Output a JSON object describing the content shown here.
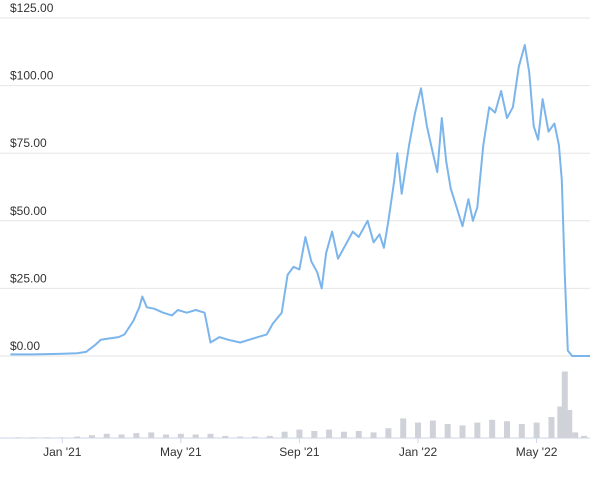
{
  "chart_data": {
    "type": "line",
    "x": [
      -1.75,
      -1.0,
      -0.5,
      0,
      0.5,
      0.8,
      1.1,
      1.3,
      1.6,
      1.9,
      2.1,
      2.4,
      2.6,
      2.7,
      2.85,
      3.1,
      3.4,
      3.7,
      3.9,
      4.2,
      4.5,
      4.8,
      5.0,
      5.3,
      5.6,
      6.0,
      6.3,
      6.6,
      6.9,
      7.1,
      7.4,
      7.6,
      7.8,
      8.0,
      8.2,
      8.4,
      8.6,
      8.75,
      8.9,
      9.1,
      9.3,
      9.6,
      9.8,
      10.0,
      10.3,
      10.5,
      10.7,
      10.85,
      11.0,
      11.2,
      11.3,
      11.45,
      11.7,
      11.9,
      12.1,
      12.3,
      12.5,
      12.65,
      12.8,
      12.95,
      13.1,
      13.3,
      13.5,
      13.7,
      13.85,
      14.0,
      14.2,
      14.4,
      14.6,
      14.8,
      15.0,
      15.2,
      15.4,
      15.6,
      15.75,
      15.9,
      16.05,
      16.2,
      16.4,
      16.6,
      16.75,
      16.85,
      16.95,
      17.05,
      17.2,
      17.8
    ],
    "values": [
      0.6,
      0.6,
      0.7,
      0.8,
      1.0,
      1.5,
      4,
      6,
      6.5,
      7,
      8,
      13,
      18,
      22,
      18,
      17.5,
      16,
      15,
      17,
      16,
      17,
      16,
      5,
      7,
      6,
      5,
      6,
      7,
      8,
      12,
      16,
      30,
      33,
      32,
      44,
      35,
      31,
      25,
      38,
      46,
      36,
      42,
      46,
      44,
      50,
      42,
      45,
      40,
      50,
      65,
      75,
      60,
      78,
      90,
      99,
      85,
      75,
      68,
      88,
      72,
      62,
      55,
      48,
      58,
      50,
      55,
      78,
      92,
      90,
      98,
      88,
      92,
      107,
      115,
      105,
      85,
      80,
      95,
      83,
      86,
      78,
      65,
      30,
      2,
      0.01,
      0.01
    ],
    "color": "#7cb5ec",
    "xlim": [
      -2.1,
      17.8
    ],
    "xticks": [
      {
        "value": 0,
        "label": "Jan '21"
      },
      {
        "value": 4,
        "label": "May '21"
      },
      {
        "value": 8,
        "label": "Sep '21"
      },
      {
        "value": 12,
        "label": "Jan '22"
      },
      {
        "value": 16,
        "label": "May '22"
      }
    ],
    "ylim": [
      0,
      125
    ],
    "yticks": [
      {
        "value": 0,
        "label": "$0.00"
      },
      {
        "value": 25,
        "label": "$25.00"
      },
      {
        "value": 50,
        "label": "$50.00"
      },
      {
        "value": 75,
        "label": "$75.00"
      },
      {
        "value": 100,
        "label": "$100.00"
      },
      {
        "value": 125,
        "label": "$125.00"
      }
    ],
    "grid": true,
    "volume": {
      "x": [
        -1.5,
        -1.0,
        -0.5,
        0,
        0.5,
        1.0,
        1.5,
        2.0,
        2.5,
        3.0,
        3.5,
        4.0,
        4.5,
        5.0,
        5.5,
        6.0,
        6.5,
        7.0,
        7.5,
        8.0,
        8.5,
        9.0,
        9.5,
        10.0,
        10.5,
        11.0,
        11.5,
        12.0,
        12.5,
        13.0,
        13.5,
        14.0,
        14.5,
        15.0,
        15.5,
        16.0,
        16.5,
        16.8,
        16.95,
        17.1,
        17.3,
        17.6
      ],
      "values": [
        1,
        1,
        1,
        1,
        2,
        4,
        6,
        5,
        7,
        8,
        5,
        6,
        5,
        6,
        3,
        2,
        2,
        3,
        9,
        12,
        10,
        12,
        9,
        10,
        8,
        14,
        28,
        22,
        25,
        20,
        18,
        22,
        26,
        24,
        20,
        22,
        30,
        45,
        95,
        40,
        8,
        3
      ],
      "color": "#cfd2d8",
      "ylim": [
        0,
        100
      ]
    }
  }
}
